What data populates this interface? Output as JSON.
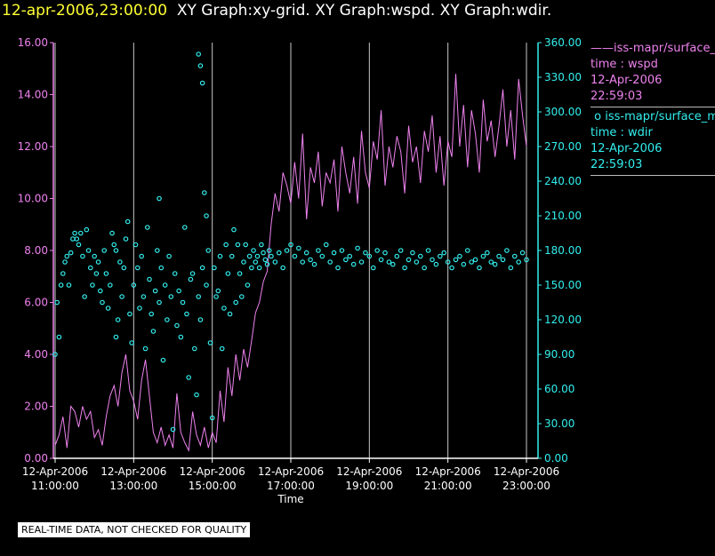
{
  "header": {
    "timestamp": "12-apr-2006,23:00:00",
    "title": "XY Graph:xy-grid.  XY Graph:wspd.  XY Graph:wdir."
  },
  "legend": {
    "wspd": {
      "line1": "iss-mapr/surface_m",
      "line2": "time : wspd",
      "line3": "12-Apr-2006",
      "line4": "22:59:03",
      "color": "#ee82ee"
    },
    "wdir": {
      "line1": "iss-mapr/surface_m",
      "line2": "time : wdir",
      "line3": "12-Apr-2006",
      "line4": "22:59:03",
      "color": "#33eeee"
    }
  },
  "note": "REAL-TIME DATA, NOT CHECKED FOR QUALITY",
  "chart_data": {
    "type": "line",
    "xlabel": "Time",
    "xlim": [
      11.0,
      23.3
    ],
    "x_ticks": [
      {
        "value": 11,
        "date": "12-Apr-2006",
        "time": "11:00:00"
      },
      {
        "value": 13,
        "date": "12-Apr-2006",
        "time": "13:00:00"
      },
      {
        "value": 15,
        "date": "12-Apr-2006",
        "time": "15:00:00"
      },
      {
        "value": 17,
        "date": "12-Apr-2006",
        "time": "17:00:00"
      },
      {
        "value": 19,
        "date": "12-Apr-2006",
        "time": "19:00:00"
      },
      {
        "value": 21,
        "date": "12-Apr-2006",
        "time": "21:00:00"
      },
      {
        "value": 23,
        "date": "12-Apr-2006",
        "time": "23:00:00"
      }
    ],
    "y_left": {
      "name": "wspd",
      "ylim": [
        0,
        16
      ],
      "ticks": [
        "0.00",
        "2.00",
        "4.00",
        "6.00",
        "8.00",
        "10.00",
        "12.00",
        "14.00",
        "16.00"
      ],
      "color": "#ee82ee"
    },
    "y_right": {
      "name": "wdir",
      "ylim": [
        0,
        360
      ],
      "ticks": [
        "0.00",
        "30.00",
        "60.00",
        "90.00",
        "120.00",
        "150.00",
        "180.00",
        "210.00",
        "240.00",
        "270.00",
        "300.00",
        "330.00",
        "360.00"
      ],
      "color": "#33eeee"
    },
    "series": [
      {
        "name": "wspd",
        "style": "line",
        "axis": "left",
        "color": "#ee82ee",
        "x": [
          11.0,
          11.1,
          11.2,
          11.3,
          11.4,
          11.5,
          11.6,
          11.7,
          11.8,
          11.9,
          12.0,
          12.1,
          12.2,
          12.3,
          12.4,
          12.5,
          12.6,
          12.7,
          12.8,
          12.9,
          13.0,
          13.1,
          13.2,
          13.3,
          13.4,
          13.5,
          13.6,
          13.7,
          13.8,
          13.9,
          14.0,
          14.1,
          14.2,
          14.3,
          14.4,
          14.5,
          14.6,
          14.7,
          14.8,
          14.9,
          15.0,
          15.1,
          15.2,
          15.3,
          15.4,
          15.5,
          15.6,
          15.7,
          15.8,
          15.9,
          16.0,
          16.1,
          16.2,
          16.3,
          16.4,
          16.5,
          16.6,
          16.7,
          16.8,
          16.9,
          17.0,
          17.1,
          17.2,
          17.3,
          17.4,
          17.5,
          17.6,
          17.7,
          17.8,
          17.9,
          18.0,
          18.1,
          18.2,
          18.3,
          18.4,
          18.5,
          18.6,
          18.7,
          18.8,
          18.9,
          19.0,
          19.1,
          19.2,
          19.3,
          19.4,
          19.5,
          19.6,
          19.7,
          19.8,
          19.9,
          20.0,
          20.1,
          20.2,
          20.3,
          20.4,
          20.5,
          20.6,
          20.7,
          20.8,
          20.9,
          21.0,
          21.1,
          21.2,
          21.3,
          21.4,
          21.5,
          21.6,
          21.7,
          21.8,
          21.9,
          22.0,
          22.1,
          22.2,
          22.3,
          22.4,
          22.5,
          22.6,
          22.7,
          22.8,
          22.9,
          23.0
        ],
        "y": [
          0.5,
          0.9,
          1.6,
          0.4,
          2.0,
          1.8,
          1.2,
          2.0,
          1.5,
          1.8,
          0.8,
          1.1,
          0.5,
          1.6,
          2.4,
          2.8,
          2.0,
          3.3,
          4.0,
          2.6,
          2.2,
          1.5,
          3.0,
          3.8,
          2.4,
          1.0,
          0.6,
          1.2,
          0.5,
          0.9,
          0.4,
          2.5,
          1.0,
          0.6,
          0.3,
          1.8,
          0.9,
          0.5,
          1.2,
          0.4,
          1.0,
          0.6,
          2.6,
          1.4,
          3.5,
          2.4,
          4.0,
          3.0,
          4.2,
          3.5,
          4.5,
          5.6,
          6.0,
          6.8,
          7.2,
          9.0,
          10.2,
          9.5,
          11.0,
          10.5,
          9.8,
          11.4,
          10.0,
          12.5,
          9.2,
          11.2,
          10.6,
          11.8,
          9.7,
          11.0,
          10.6,
          11.5,
          9.5,
          12.0,
          11.0,
          10.2,
          11.6,
          9.8,
          12.6,
          11.0,
          10.4,
          12.2,
          11.5,
          13.4,
          10.5,
          12.0,
          11.2,
          12.4,
          11.8,
          10.2,
          12.8,
          11.4,
          12.0,
          10.6,
          12.6,
          11.8,
          13.2,
          11.0,
          12.4,
          10.5,
          12.2,
          11.6,
          14.8,
          12.0,
          13.6,
          11.2,
          13.4,
          12.5,
          11.0,
          13.8,
          12.2,
          13.0,
          11.6,
          12.8,
          14.2,
          12.0,
          13.4,
          11.5,
          14.6,
          13.2,
          12.0
        ]
      },
      {
        "name": "wdir",
        "style": "scatter",
        "axis": "right",
        "color": "#33eeee",
        "x": [
          11.0,
          11.05,
          11.1,
          11.15,
          11.2,
          11.25,
          11.3,
          11.35,
          11.4,
          11.45,
          11.5,
          11.55,
          11.6,
          11.65,
          11.7,
          11.75,
          11.8,
          11.85,
          11.9,
          11.95,
          12.0,
          12.05,
          12.1,
          12.15,
          12.2,
          12.25,
          12.3,
          12.35,
          12.4,
          12.45,
          12.5,
          12.55,
          12.6,
          12.65,
          12.7,
          12.75,
          12.8,
          12.85,
          12.9,
          12.95,
          13.0,
          13.05,
          13.1,
          13.15,
          13.2,
          13.25,
          13.3,
          13.35,
          13.4,
          13.45,
          13.5,
          13.55,
          13.6,
          13.65,
          13.7,
          13.75,
          13.8,
          13.85,
          13.9,
          13.95,
          14.0,
          14.05,
          14.1,
          14.15,
          14.2,
          14.25,
          14.3,
          14.35,
          14.4,
          14.45,
          14.5,
          14.55,
          14.6,
          14.65,
          14.7,
          14.75,
          14.8,
          14.85,
          14.9,
          14.95,
          15.0,
          15.05,
          15.1,
          15.15,
          15.2,
          15.25,
          15.3,
          15.35,
          15.4,
          15.45,
          15.5,
          15.55,
          15.6,
          15.65,
          15.7,
          15.75,
          15.8,
          15.85,
          15.9,
          15.95,
          16.0,
          16.05,
          16.1,
          16.15,
          16.2,
          16.25,
          16.3,
          16.35,
          16.4,
          16.45,
          16.5,
          16.6,
          16.7,
          16.8,
          16.9,
          17.0,
          17.1,
          17.2,
          17.3,
          17.4,
          17.5,
          17.6,
          17.7,
          17.8,
          17.9,
          18.0,
          18.1,
          18.2,
          18.3,
          18.4,
          18.5,
          18.6,
          18.7,
          18.8,
          18.9,
          19.0,
          19.1,
          19.2,
          19.3,
          19.4,
          19.5,
          19.6,
          19.7,
          19.8,
          19.9,
          20.0,
          20.1,
          20.2,
          20.3,
          20.4,
          20.5,
          20.6,
          20.7,
          20.8,
          20.9,
          21.0,
          21.1,
          21.2,
          21.3,
          21.4,
          21.5,
          21.6,
          21.7,
          21.8,
          21.9,
          22.0,
          22.1,
          22.2,
          22.3,
          22.4,
          22.5,
          22.6,
          22.7,
          22.8,
          22.9,
          23.0,
          14.65,
          14.7,
          14.75,
          13.65,
          14.85,
          12.55
        ],
        "y": [
          90,
          135,
          105,
          150,
          160,
          170,
          175,
          150,
          178,
          190,
          195,
          190,
          185,
          195,
          175,
          140,
          198,
          180,
          165,
          150,
          175,
          160,
          170,
          145,
          135,
          180,
          160,
          130,
          150,
          195,
          185,
          105,
          120,
          170,
          140,
          165,
          190,
          205,
          125,
          100,
          150,
          185,
          165,
          130,
          175,
          140,
          95,
          200,
          155,
          125,
          110,
          145,
          180,
          135,
          165,
          85,
          150,
          120,
          175,
          140,
          25,
          160,
          115,
          145,
          105,
          135,
          200,
          125,
          70,
          155,
          160,
          95,
          55,
          140,
          120,
          165,
          230,
          150,
          180,
          100,
          35,
          165,
          140,
          145,
          175,
          95,
          130,
          185,
          160,
          125,
          175,
          198,
          135,
          185,
          160,
          140,
          170,
          185,
          150,
          175,
          165,
          180,
          170,
          175,
          165,
          185,
          178,
          172,
          168,
          180,
          175,
          170,
          178,
          165,
          180,
          185,
          175,
          182,
          170,
          178,
          172,
          168,
          180,
          175,
          185,
          170,
          178,
          165,
          180,
          172,
          175,
          168,
          182,
          170,
          178,
          175,
          165,
          180,
          172,
          178,
          170,
          168,
          175,
          180,
          165,
          172,
          178,
          170,
          175,
          165,
          180,
          172,
          168,
          175,
          178,
          170,
          165,
          172,
          175,
          168,
          180,
          170,
          172,
          165,
          175,
          178,
          170,
          168,
          175,
          172,
          180,
          165,
          175,
          170,
          178,
          172,
          350,
          340,
          325,
          225,
          210,
          180
        ]
      }
    ]
  }
}
